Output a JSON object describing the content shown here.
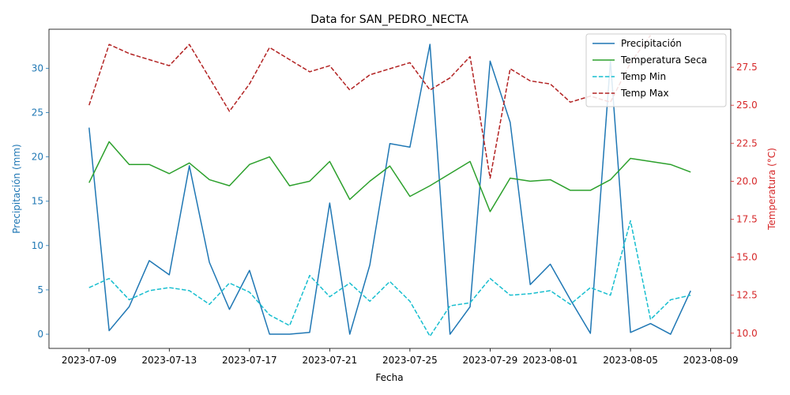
{
  "chart_data": {
    "type": "line",
    "title": "Data for SAN_PEDRO_NECTA",
    "xlabel": "Fecha",
    "ylabel_left": "Precipitación (mm)",
    "ylabel_right": "Temperatura (°C)",
    "left_axis_color": "#1f77b4",
    "right_axis_color": "#d62728",
    "xlim": [
      "2023-07-07",
      "2023-08-10"
    ],
    "ylim_left": [
      -1.6,
      34.4
    ],
    "ylim_right": [
      9.0,
      30.0
    ],
    "x_ticks": [
      "2023-07-09",
      "2023-07-13",
      "2023-07-17",
      "2023-07-21",
      "2023-07-25",
      "2023-07-29",
      "2023-08-01",
      "2023-08-05",
      "2023-08-09"
    ],
    "y_ticks_left": [
      0,
      5,
      10,
      15,
      20,
      25,
      30
    ],
    "y_ticks_right": [
      "10.0",
      "12.5",
      "15.0",
      "17.5",
      "20.0",
      "22.5",
      "25.0",
      "27.5"
    ],
    "grid": false,
    "legend_position": "top-right",
    "dates": [
      "2023-07-09",
      "2023-07-10",
      "2023-07-11",
      "2023-07-12",
      "2023-07-13",
      "2023-07-14",
      "2023-07-15",
      "2023-07-16",
      "2023-07-17",
      "2023-07-18",
      "2023-07-19",
      "2023-07-20",
      "2023-07-21",
      "2023-07-22",
      "2023-07-23",
      "2023-07-24",
      "2023-07-25",
      "2023-07-26",
      "2023-07-27",
      "2023-07-28",
      "2023-07-29",
      "2023-07-30",
      "2023-07-31",
      "2023-08-01",
      "2023-08-02",
      "2023-08-03",
      "2023-08-04",
      "2023-08-05",
      "2023-08-06",
      "2023-08-07",
      "2023-08-08"
    ],
    "series": [
      {
        "name": "Precipitación",
        "axis": "left",
        "color": "#1f77b4",
        "dash": "solid",
        "values": [
          23.3,
          0.4,
          3.1,
          8.3,
          6.7,
          19.0,
          8.1,
          2.8,
          7.2,
          0.0,
          0.0,
          0.2,
          14.8,
          0.0,
          7.8,
          21.5,
          21.1,
          32.7,
          0.0,
          3.1,
          30.8,
          23.9,
          5.6,
          7.9,
          3.9,
          0.1,
          30.8,
          0.2,
          1.2,
          0.0,
          4.9
        ]
      },
      {
        "name": "Temperatura Seca",
        "axis": "right",
        "color": "#2ca02c",
        "dash": "solid",
        "values": [
          19.9,
          22.6,
          21.1,
          21.1,
          20.5,
          21.2,
          20.1,
          19.7,
          21.1,
          21.6,
          19.7,
          20.0,
          21.3,
          18.8,
          20.0,
          21.0,
          19.0,
          19.7,
          20.5,
          21.3,
          18.0,
          20.2,
          20.0,
          20.1,
          19.4,
          19.4,
          20.1,
          21.5,
          21.3,
          21.1,
          20.6
        ]
      },
      {
        "name": "Temp Min",
        "axis": "right",
        "color": "#17becf",
        "dash": "dashed",
        "values": [
          13.0,
          13.6,
          12.2,
          12.8,
          13.0,
          12.8,
          11.9,
          13.3,
          12.7,
          11.2,
          10.5,
          13.8,
          12.4,
          13.3,
          12.1,
          13.4,
          12.1,
          9.8,
          11.8,
          12.0,
          13.6,
          12.5,
          12.6,
          12.8,
          11.9,
          13.0,
          12.5,
          17.4,
          10.9,
          12.2,
          12.5
        ]
      },
      {
        "name": "Temp Max",
        "axis": "right",
        "color": "#b22222",
        "dash": "dashed",
        "values": [
          25.0,
          29.0,
          28.4,
          28.0,
          27.6,
          29.0,
          26.8,
          24.6,
          26.4,
          28.8,
          28.0,
          27.2,
          27.6,
          26.0,
          27.0,
          27.4,
          27.8,
          26.0,
          26.8,
          28.2,
          20.2,
          27.4,
          26.6,
          26.4,
          25.2,
          25.6,
          25.2,
          27.8,
          29.6,
          null,
          null
        ]
      }
    ]
  }
}
